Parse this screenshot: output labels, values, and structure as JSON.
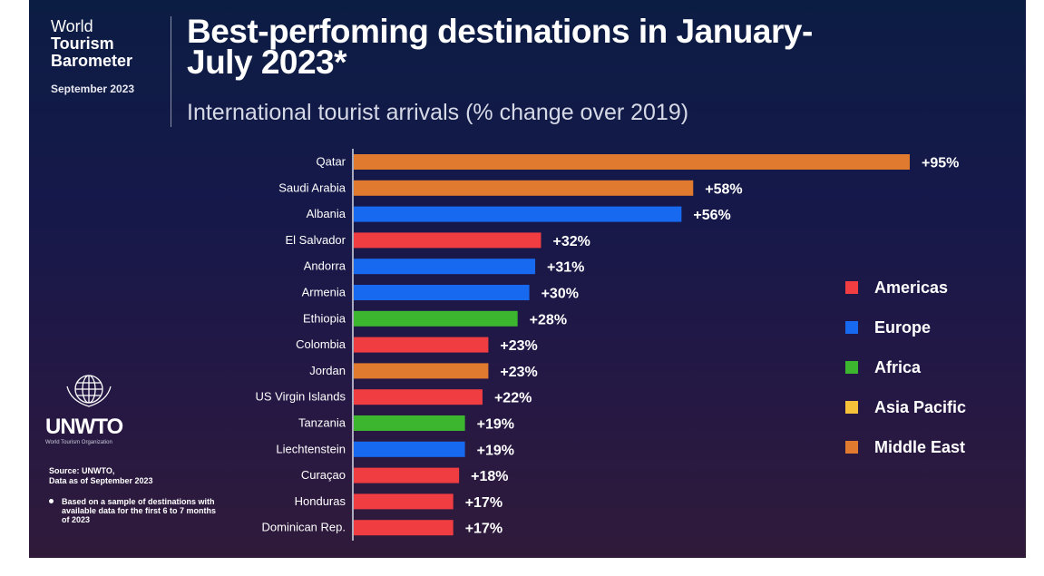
{
  "header": {
    "brand_line1": "World",
    "brand_line2": "Tourism",
    "brand_line3": "Barometer",
    "brand_date": "September 2023"
  },
  "logo": {
    "name": "UNWTO",
    "subtitle": "World Tourism Organization"
  },
  "source": {
    "line1": "Source: UNWTO,",
    "line2": "Data as of September 2023"
  },
  "footnote": "Based on a sample of destinations with available data for the first 6 to 7 months of 2023",
  "colors": {
    "Americas": "#ef3d42",
    "Europe": "#1769f0",
    "Africa": "#3cb62e",
    "Asia Pacific": "#f5c23a",
    "Middle East": "#e07a2e"
  },
  "chart_data": {
    "type": "bar",
    "orientation": "horizontal",
    "title": "Best-perfoming destinations in January-July 2023*",
    "subtitle": "International tourist arrivals (% change over 2019)",
    "categories": [
      "Qatar",
      "Saudi Arabia",
      "Albania",
      "El Salvador",
      "Andorra",
      "Armenia",
      "Ethiopia",
      "Colombia",
      "Jordan",
      "US Virgin Islands",
      "Tanzania",
      "Liechtenstein",
      "Curaçao",
      "Honduras",
      "Dominican Rep."
    ],
    "values": [
      95,
      58,
      56,
      32,
      31,
      30,
      28,
      23,
      23,
      22,
      19,
      19,
      18,
      17,
      17
    ],
    "labels": [
      "+95%",
      "+58%",
      "+56%",
      "+32%",
      "+31%",
      "+30%",
      "+28%",
      "+23%",
      "+23%",
      "+22%",
      "+19%",
      "+19%",
      "+18%",
      "+17%",
      "+17%"
    ],
    "regions": [
      "Middle East",
      "Middle East",
      "Europe",
      "Americas",
      "Europe",
      "Europe",
      "Africa",
      "Americas",
      "Middle East",
      "Americas",
      "Africa",
      "Europe",
      "Americas",
      "Americas",
      "Americas"
    ],
    "legend": [
      "Americas",
      "Europe",
      "Africa",
      "Asia Pacific",
      "Middle East"
    ],
    "legend_position": "right",
    "xlim": [
      0,
      95
    ],
    "grid": false
  }
}
